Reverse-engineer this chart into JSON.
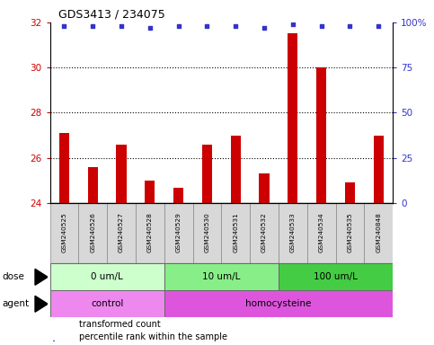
{
  "title": "GDS3413 / 234075",
  "samples": [
    "GSM240525",
    "GSM240526",
    "GSM240527",
    "GSM240528",
    "GSM240529",
    "GSM240530",
    "GSM240531",
    "GSM240532",
    "GSM240533",
    "GSM240534",
    "GSM240535",
    "GSM240848"
  ],
  "transformed_counts": [
    27.1,
    25.6,
    26.6,
    25.0,
    24.7,
    26.6,
    27.0,
    25.3,
    31.5,
    30.0,
    24.9,
    27.0
  ],
  "percentile_ranks": [
    98,
    98,
    98,
    97,
    98,
    98,
    98,
    97,
    99,
    98,
    98,
    98
  ],
  "bar_color": "#cc0000",
  "dot_color": "#3333cc",
  "ylim_left": [
    24,
    32
  ],
  "ylim_right": [
    0,
    100
  ],
  "yticks_left": [
    24,
    26,
    28,
    30,
    32
  ],
  "yticks_right": [
    0,
    25,
    50,
    75,
    100
  ],
  "yticklabels_right": [
    "0",
    "25",
    "50",
    "75",
    "100%"
  ],
  "dotted_lines": [
    26,
    28,
    30
  ],
  "dose_groups": [
    {
      "label": "0 um/L",
      "start": 0,
      "end": 4,
      "color": "#ccffcc"
    },
    {
      "label": "10 um/L",
      "start": 4,
      "end": 8,
      "color": "#88ee88"
    },
    {
      "label": "100 um/L",
      "start": 8,
      "end": 12,
      "color": "#44cc44"
    }
  ],
  "agent_groups": [
    {
      "label": "control",
      "start": 0,
      "end": 4,
      "color": "#ee88ee"
    },
    {
      "label": "homocysteine",
      "start": 4,
      "end": 12,
      "color": "#dd55dd"
    }
  ],
  "legend_items": [
    {
      "label": "transformed count",
      "color": "#cc0000"
    },
    {
      "label": "percentile rank within the sample",
      "color": "#3333cc"
    }
  ],
  "bar_bottom": 24,
  "sample_bg_color": "#d8d8d8",
  "bar_width": 0.35
}
